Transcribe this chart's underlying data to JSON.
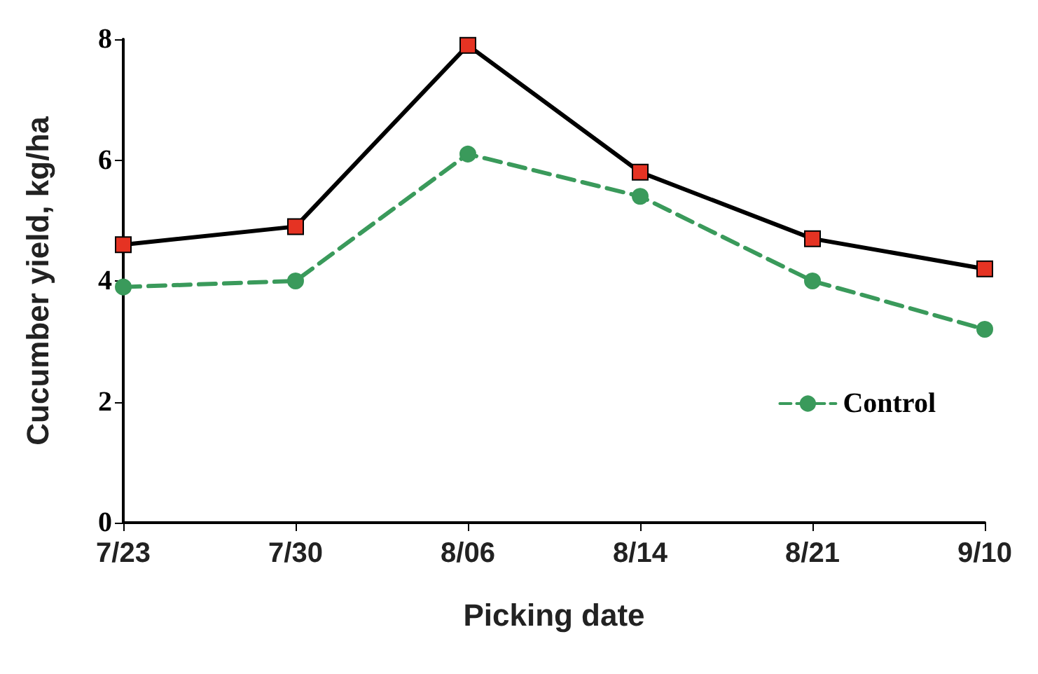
{
  "chart_data": {
    "type": "line",
    "xlabel": "Picking date",
    "ylabel": "Cucumber yield, kg/ha",
    "categories": [
      "7/23",
      "7/30",
      "8/06",
      "8/14",
      "8/21",
      "9/10"
    ],
    "series": [
      {
        "name": "Control",
        "color": "#3a9a5b",
        "values": [
          3.9,
          4.0,
          6.1,
          5.4,
          4.0,
          3.2
        ],
        "marker": "circle",
        "line_style": "dashed"
      },
      {
        "color": "#e53323",
        "values": [
          4.6,
          4.9,
          7.9,
          5.8,
          4.7,
          4.2
        ],
        "marker": "square",
        "line_style": "solid"
      }
    ],
    "ylim": [
      0,
      8
    ],
    "yticks": [
      0,
      2,
      4,
      6,
      8
    ],
    "grid": false,
    "legend": "right"
  }
}
